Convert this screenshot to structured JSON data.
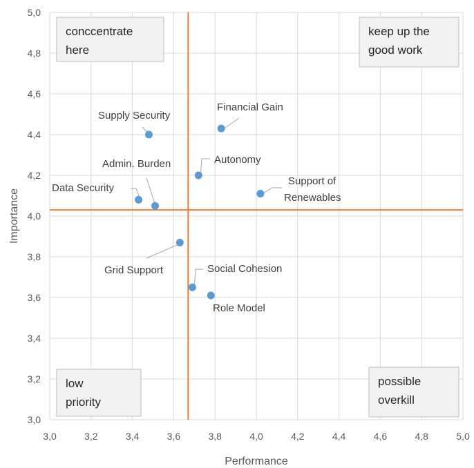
{
  "chart_data": {
    "type": "scatter",
    "title": "",
    "xlabel": "Performance",
    "ylabel": "Importance",
    "xlim": [
      3.0,
      5.0
    ],
    "ylim": [
      3.0,
      5.0
    ],
    "x_ticks": [
      "3,0",
      "3,2",
      "3,4",
      "3,6",
      "3,8",
      "4,0",
      "4,2",
      "4,4",
      "4,6",
      "4,8",
      "5,0"
    ],
    "y_ticks": [
      "3,0",
      "3,2",
      "3,4",
      "3,6",
      "3,8",
      "4,0",
      "4,2",
      "4,4",
      "4,6",
      "4,8",
      "5,0"
    ],
    "grid": true,
    "point_color": "#5b9bd5",
    "reference_line_color": "#ed7d31",
    "reference_lines": {
      "x": 3.67,
      "y": 4.03
    },
    "points": [
      {
        "label": "Supply Security",
        "x": 3.48,
        "y": 4.4
      },
      {
        "label": "Financial Gain",
        "x": 3.83,
        "y": 4.43
      },
      {
        "label": "Autonomy",
        "x": 3.72,
        "y": 4.2
      },
      {
        "label": "Admin. Burden",
        "x": 3.51,
        "y": 4.05
      },
      {
        "label": "Data Security",
        "x": 3.43,
        "y": 4.08
      },
      {
        "label": "Support of Renewables",
        "x": 4.02,
        "y": 4.11
      },
      {
        "label": "Grid Support",
        "x": 3.63,
        "y": 3.87
      },
      {
        "label": "Social Cohesion",
        "x": 3.69,
        "y": 3.65
      },
      {
        "label": "Role Model",
        "x": 3.78,
        "y": 3.61
      }
    ],
    "quadrant_labels": {
      "top_left": [
        "conccentrate",
        "here"
      ],
      "top_right": [
        "keep up the",
        "good work"
      ],
      "bottom_left": [
        "low",
        "priority"
      ],
      "bottom_right": [
        "possible",
        "overkill"
      ]
    }
  }
}
